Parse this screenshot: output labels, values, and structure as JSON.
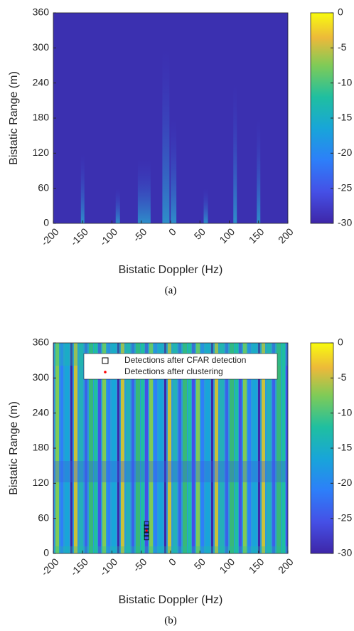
{
  "chart_data": [
    {
      "type": "heatmap",
      "xlabel": "Bistatic Doppler (Hz)",
      "ylabel": "Bistatic Range (m)",
      "caption": "(a)",
      "xlim": [
        -200,
        200
      ],
      "xticks": [
        -200,
        -150,
        -100,
        -50,
        0,
        50,
        100,
        150,
        200
      ],
      "ylim": [
        0,
        360
      ],
      "yticks": [
        0,
        60,
        120,
        180,
        240,
        300,
        360
      ],
      "clim": [
        -30,
        0
      ],
      "cticks": [
        0,
        -5,
        -10,
        -15,
        -20,
        -25,
        -30
      ]
    },
    {
      "type": "heatmap",
      "xlabel": "Bistatic Doppler (Hz)",
      "ylabel": "Bistatic Range (m)",
      "caption": "(b)",
      "xlim": [
        -200,
        200
      ],
      "xticks": [
        -200,
        -150,
        -100,
        -50,
        0,
        50,
        100,
        150,
        200
      ],
      "ylim": [
        0,
        360
      ],
      "yticks": [
        0,
        60,
        120,
        180,
        240,
        300,
        360
      ],
      "clim": [
        -30,
        0
      ],
      "cticks": [
        0,
        -5,
        -10,
        -15,
        -20,
        -25,
        -30
      ],
      "legend": "north",
      "series": [
        {
          "name": "Detections after CFAR detection",
          "color": "#000000",
          "marker": "square",
          "x": [
            -41,
            -41,
            -41,
            -41,
            -41
          ],
          "values": [
            27,
            33,
            39,
            45,
            51
          ]
        },
        {
          "name": "Detections after clustering",
          "color": "#ff0000",
          "marker": "dot",
          "x": [
            -41
          ],
          "values": [
            39
          ]
        }
      ]
    }
  ]
}
